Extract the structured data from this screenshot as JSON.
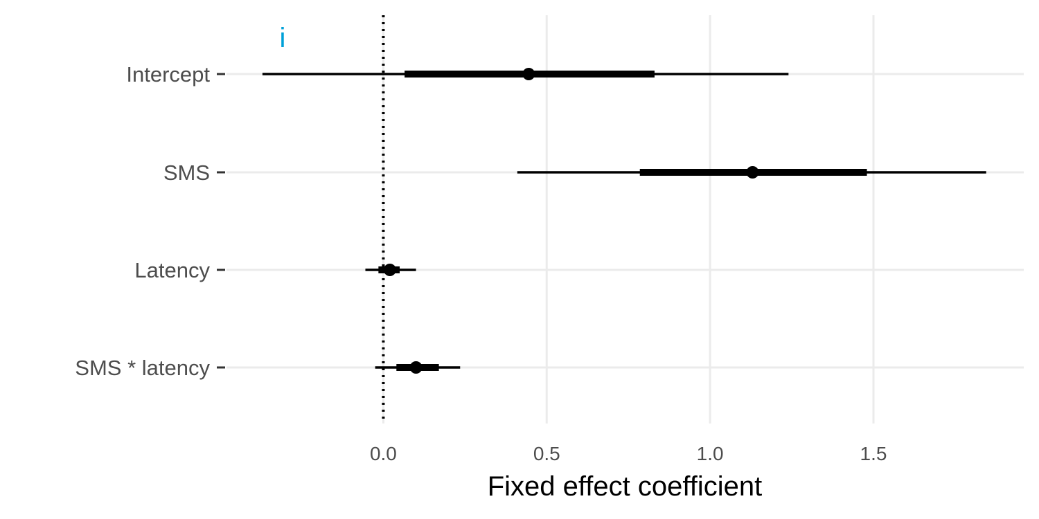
{
  "chart_data": {
    "type": "scatter",
    "panel_label": "i",
    "xlabel": "Fixed effect coefficient",
    "ylabel": "",
    "xlim": [
      -0.48,
      1.96
    ],
    "x_ticks": [
      0.0,
      0.5,
      1.0,
      1.5
    ],
    "x_tick_labels": [
      "0.0",
      "0.5",
      "1.0",
      "1.5"
    ],
    "reference_line": 0.0,
    "grid": true,
    "categories": [
      "Intercept",
      "SMS",
      "Latency",
      "SMS * latency"
    ],
    "estimates": [
      {
        "label": "Intercept",
        "estimate": 0.445,
        "inner": [
          0.065,
          0.83
        ],
        "outer": [
          -0.37,
          1.24
        ]
      },
      {
        "label": "SMS",
        "estimate": 1.13,
        "inner": [
          0.785,
          1.48
        ],
        "outer": [
          0.41,
          1.845
        ]
      },
      {
        "label": "Latency",
        "estimate": 0.02,
        "inner": [
          -0.015,
          0.05
        ],
        "outer": [
          -0.055,
          0.1
        ]
      },
      {
        "label": "SMS * latency",
        "estimate": 0.1,
        "inner": [
          0.04,
          0.17
        ],
        "outer": [
          -0.025,
          0.235
        ]
      }
    ],
    "colors": {
      "line": "#000000",
      "grid": "#ebebeb",
      "text": "#4d4d4d",
      "panel_label": "#00a0d8"
    }
  }
}
